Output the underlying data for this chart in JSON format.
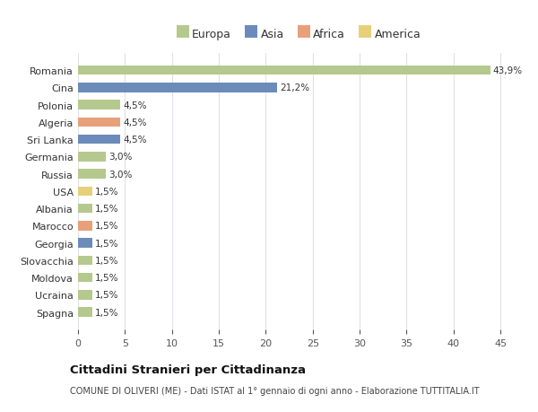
{
  "countries": [
    "Romania",
    "Cina",
    "Polonia",
    "Algeria",
    "Sri Lanka",
    "Germania",
    "Russia",
    "USA",
    "Albania",
    "Marocco",
    "Georgia",
    "Slovacchia",
    "Moldova",
    "Ucraina",
    "Spagna"
  ],
  "values": [
    43.9,
    21.2,
    4.5,
    4.5,
    4.5,
    3.0,
    3.0,
    1.5,
    1.5,
    1.5,
    1.5,
    1.5,
    1.5,
    1.5,
    1.5
  ],
  "labels": [
    "43,9%",
    "21,2%",
    "4,5%",
    "4,5%",
    "4,5%",
    "3,0%",
    "3,0%",
    "1,5%",
    "1,5%",
    "1,5%",
    "1,5%",
    "1,5%",
    "1,5%",
    "1,5%",
    "1,5%"
  ],
  "continents": [
    "Europa",
    "Asia",
    "Europa",
    "Africa",
    "Asia",
    "Europa",
    "Europa",
    "America",
    "Europa",
    "Africa",
    "Asia",
    "Europa",
    "Europa",
    "Europa",
    "Europa"
  ],
  "continent_colors": {
    "Europa": "#b5c98e",
    "Asia": "#6b8cba",
    "Africa": "#e8a07a",
    "America": "#e8d07a"
  },
  "legend_order": [
    "Europa",
    "Asia",
    "Africa",
    "America"
  ],
  "title": "Cittadini Stranieri per Cittadinanza",
  "subtitle": "COMUNE DI OLIVERI (ME) - Dati ISTAT al 1° gennaio di ogni anno - Elaborazione TUTTITALIA.IT",
  "bg_color": "#ffffff",
  "plot_bg_color": "#ffffff",
  "xlim": [
    0,
    47
  ],
  "xticks": [
    0,
    5,
    10,
    15,
    20,
    25,
    30,
    35,
    40,
    45
  ],
  "grid_color": "#e0e0e8",
  "bar_height": 0.55
}
